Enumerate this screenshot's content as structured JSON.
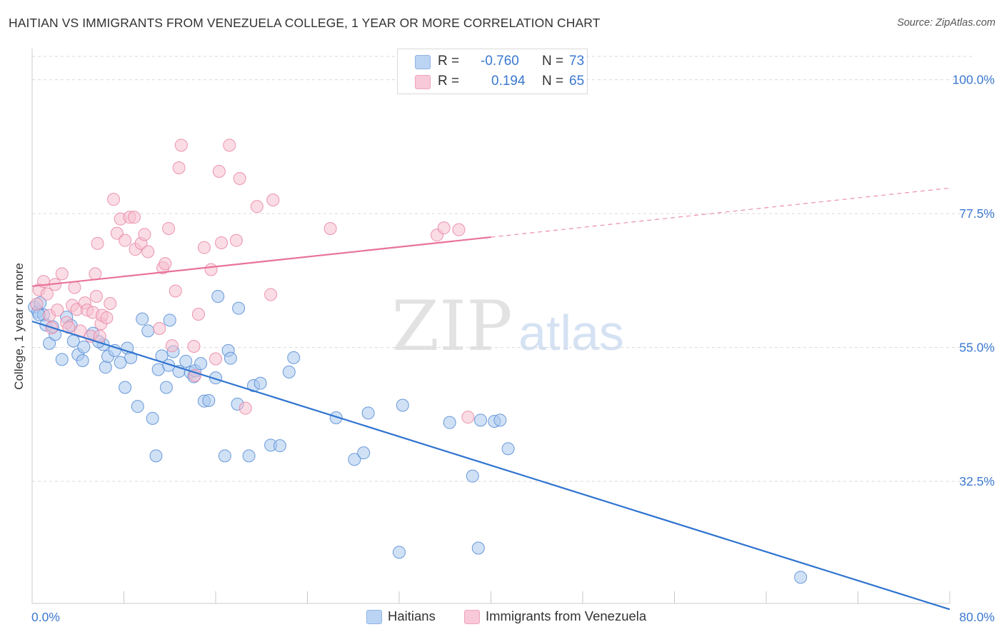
{
  "header": {
    "title": "HAITIAN VS IMMIGRANTS FROM VENEZUELA COLLEGE, 1 YEAR OR MORE CORRELATION CHART",
    "source": "Source: ZipAtlas.com"
  },
  "legend": {
    "rows": [
      {
        "r_label": "R =",
        "r_value": "-0.760",
        "n_label": "N =",
        "n_value": "73"
      },
      {
        "r_label": "R =",
        "r_value": "0.194",
        "n_label": "N =",
        "n_value": "65"
      }
    ]
  },
  "watermark": {
    "zip": "ZIP",
    "atlas": "atlas"
  },
  "colors": {
    "blue_fill": "#a9c8ef",
    "blue_stroke": "#5b8fd6",
    "blue_line": "#2f74d0",
    "pink_fill": "#f6bfd0",
    "pink_stroke": "#e98aa8",
    "pink_line": "#e8729a",
    "tick_label": "#3b78d0",
    "grid": "#d9d9d9"
  },
  "chart_data": {
    "type": "scatter",
    "title": "HAITIAN VS IMMIGRANTS FROM VENEZUELA COLLEGE, 1 YEAR OR MORE CORRELATION CHART",
    "xlabel": "",
    "ylabel": "College, 1 year or more",
    "xlim": [
      0,
      80
    ],
    "ylim": [
      12.0,
      105.0
    ],
    "x_tick_labels": [
      "0.0%",
      "80.0%"
    ],
    "y_ticks": [
      32.5,
      55.0,
      77.5,
      100.0
    ],
    "y_tick_labels": [
      "32.5%",
      "55.0%",
      "77.5%",
      "100.0%"
    ],
    "grid": "horizontal dashed",
    "legend_position": "top-center",
    "series": [
      {
        "name": "Haitians",
        "r": -0.76,
        "n": 73,
        "trend": {
          "x0": 0,
          "y0": 59.4,
          "x1": 80,
          "y1": 11.0,
          "dashed_from": null
        },
        "points": [
          [
            0.2,
            61.8
          ],
          [
            0.5,
            61.0
          ],
          [
            0.7,
            62.5
          ],
          [
            1.0,
            60.5
          ],
          [
            1.2,
            58.8
          ],
          [
            1.5,
            55.7
          ],
          [
            2.0,
            57.2
          ],
          [
            2.6,
            53.0
          ],
          [
            3.0,
            60.1
          ],
          [
            3.4,
            58.7
          ],
          [
            3.6,
            56.1
          ],
          [
            4.0,
            53.8
          ],
          [
            4.4,
            52.8
          ],
          [
            4.5,
            55.1
          ],
          [
            5.3,
            57.4
          ],
          [
            6.2,
            55.5
          ],
          [
            6.4,
            51.7
          ],
          [
            6.6,
            53.5
          ],
          [
            7.2,
            54.5
          ],
          [
            7.7,
            52.5
          ],
          [
            8.1,
            48.3
          ],
          [
            8.3,
            54.9
          ],
          [
            8.6,
            53.3
          ],
          [
            9.2,
            45.1
          ],
          [
            9.6,
            59.8
          ],
          [
            10.1,
            57.8
          ],
          [
            10.5,
            43.1
          ],
          [
            10.8,
            36.8
          ],
          [
            11.0,
            51.3
          ],
          [
            11.3,
            53.6
          ],
          [
            11.7,
            48.3
          ],
          [
            11.9,
            52.0
          ],
          [
            12.0,
            59.6
          ],
          [
            12.3,
            54.3
          ],
          [
            12.8,
            51.0
          ],
          [
            13.4,
            52.7
          ],
          [
            13.8,
            50.8
          ],
          [
            14.1,
            50.1
          ],
          [
            14.2,
            51.1
          ],
          [
            14.7,
            52.3
          ],
          [
            15.0,
            46.0
          ],
          [
            15.4,
            46.1
          ],
          [
            16.0,
            49.9
          ],
          [
            16.2,
            63.6
          ],
          [
            16.8,
            36.8
          ],
          [
            17.1,
            54.5
          ],
          [
            17.3,
            53.2
          ],
          [
            17.9,
            45.5
          ],
          [
            18.0,
            61.6
          ],
          [
            18.9,
            36.8
          ],
          [
            19.3,
            48.6
          ],
          [
            19.9,
            49.0
          ],
          [
            20.8,
            38.6
          ],
          [
            21.6,
            38.5
          ],
          [
            22.4,
            50.9
          ],
          [
            22.8,
            53.3
          ],
          [
            26.5,
            43.2
          ],
          [
            28.1,
            36.2
          ],
          [
            28.9,
            37.3
          ],
          [
            29.3,
            44.0
          ],
          [
            32.0,
            20.6
          ],
          [
            32.3,
            45.3
          ],
          [
            36.4,
            42.4
          ],
          [
            38.4,
            33.4
          ],
          [
            39.1,
            42.8
          ],
          [
            40.3,
            42.6
          ],
          [
            40.8,
            42.8
          ],
          [
            41.5,
            38.0
          ],
          [
            38.9,
            21.3
          ],
          [
            67.0,
            16.4
          ],
          [
            0.6,
            60.5
          ],
          [
            1.8,
            58.5
          ],
          [
            5.8,
            56.0
          ]
        ]
      },
      {
        "name": "Immigrants from Venezuela",
        "r": 0.194,
        "n": 65,
        "trend": {
          "x0": 0,
          "y0": 65.3,
          "x1": 80,
          "y1": 81.8,
          "dashed_from": 40
        },
        "points": [
          [
            0.4,
            62.3
          ],
          [
            0.6,
            64.7
          ],
          [
            1.0,
            66.1
          ],
          [
            1.3,
            64.0
          ],
          [
            1.5,
            60.4
          ],
          [
            1.7,
            58.3
          ],
          [
            2.0,
            65.6
          ],
          [
            2.2,
            61.3
          ],
          [
            2.6,
            67.4
          ],
          [
            3.0,
            59.2
          ],
          [
            3.2,
            58.4
          ],
          [
            3.5,
            62.1
          ],
          [
            3.7,
            65.1
          ],
          [
            3.9,
            61.4
          ],
          [
            4.2,
            57.8
          ],
          [
            4.6,
            62.5
          ],
          [
            4.8,
            61.3
          ],
          [
            5.1,
            56.9
          ],
          [
            5.3,
            60.9
          ],
          [
            5.5,
            67.4
          ],
          [
            5.6,
            63.6
          ],
          [
            5.7,
            72.5
          ],
          [
            5.9,
            56.9
          ],
          [
            6.0,
            59.0
          ],
          [
            6.1,
            60.4
          ],
          [
            6.5,
            60.0
          ],
          [
            6.8,
            62.4
          ],
          [
            7.1,
            79.9
          ],
          [
            7.4,
            74.2
          ],
          [
            7.7,
            76.6
          ],
          [
            8.1,
            73.0
          ],
          [
            8.5,
            76.9
          ],
          [
            8.9,
            76.9
          ],
          [
            9.0,
            71.5
          ],
          [
            9.5,
            72.5
          ],
          [
            9.8,
            74.0
          ],
          [
            10.1,
            71.1
          ],
          [
            11.1,
            58.2
          ],
          [
            11.4,
            68.4
          ],
          [
            11.6,
            69.1
          ],
          [
            11.9,
            75.0
          ],
          [
            12.2,
            55.3
          ],
          [
            12.5,
            64.5
          ],
          [
            12.8,
            85.2
          ],
          [
            13.0,
            89.0
          ],
          [
            14.1,
            55.2
          ],
          [
            14.2,
            50.3
          ],
          [
            14.5,
            60.6
          ],
          [
            15.0,
            71.8
          ],
          [
            15.6,
            68.1
          ],
          [
            16.0,
            53.1
          ],
          [
            16.3,
            84.6
          ],
          [
            16.5,
            72.6
          ],
          [
            17.2,
            89.0
          ],
          [
            18.1,
            83.4
          ],
          [
            17.8,
            73.0
          ],
          [
            18.6,
            44.8
          ],
          [
            19.6,
            78.7
          ],
          [
            20.8,
            63.9
          ],
          [
            21.0,
            79.8
          ],
          [
            26.0,
            75.0
          ],
          [
            35.3,
            73.9
          ],
          [
            35.9,
            75.1
          ],
          [
            37.2,
            74.8
          ],
          [
            38.0,
            43.3
          ]
        ]
      }
    ]
  },
  "bottom_legend": {
    "items": [
      "Haitians",
      "Immigrants from Venezuela"
    ]
  }
}
